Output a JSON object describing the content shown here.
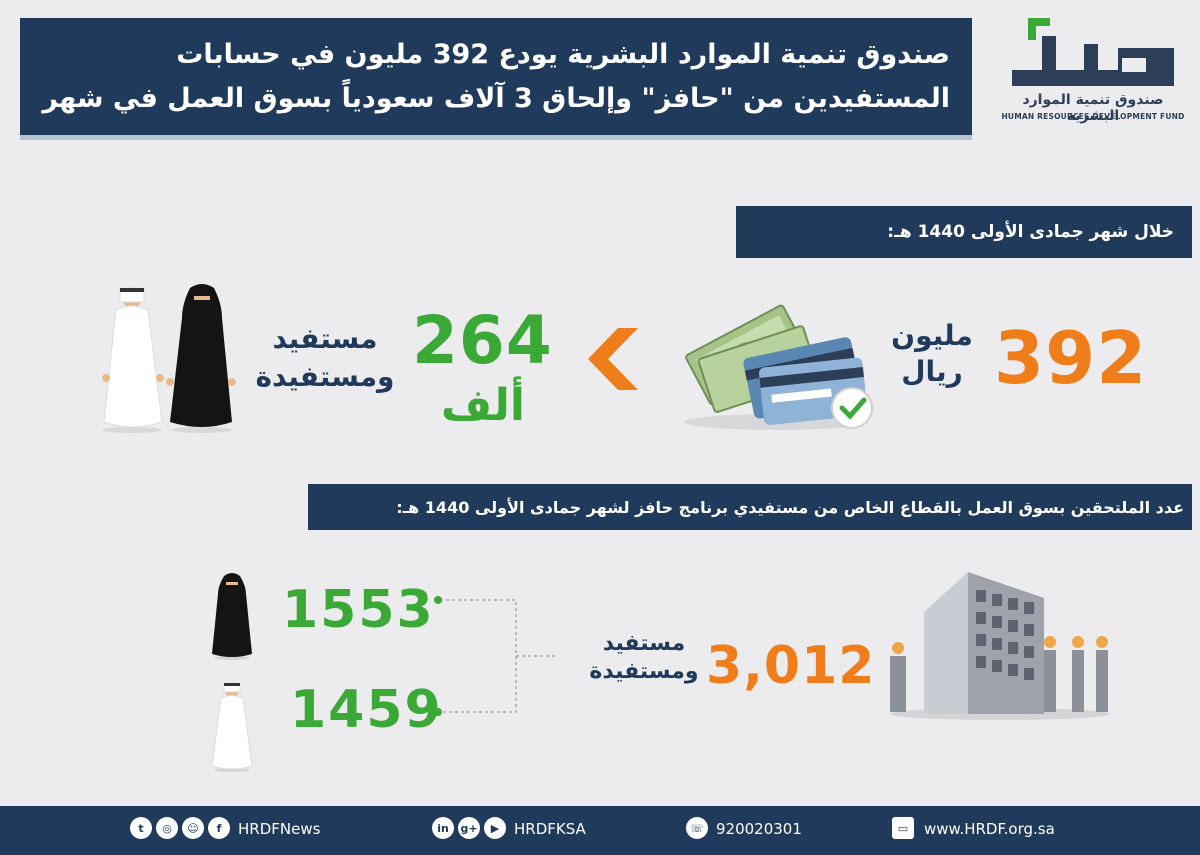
{
  "header": {
    "title_line1": "صندوق تنمية الموارد البشرية يودع 392 مليون في حسابات",
    "title_line2": "المستفيدين من \"حافز\" وإلحاق 3 آلاف سعودياً بسوق العمل في شهر",
    "logo_ar": "صندوق تنمية الموارد البشرية",
    "logo_en": "HUMAN RESOURCES DEVELOPMENT FUND"
  },
  "section1": {
    "label": "خلال شهر جمادى الأولى 1440 هـ:",
    "amount_value": "392",
    "amount_unit_line1": "مليون",
    "amount_unit_line2": "ريال",
    "beneficiaries_value": "264",
    "beneficiaries_unit": "ألف",
    "beneficiaries_label_line1": "مستفيد",
    "beneficiaries_label_line2": "ومستفيدة"
  },
  "section2": {
    "label": "عدد الملتحقين بسوق العمل بالقطاع الخاص من مستفيدي برنامج حافز لشهر جمادى الأولى 1440 هـ:",
    "total_value": "3,012",
    "total_label_line1": "مستفيد",
    "total_label_line2": "ومستفيدة",
    "female_value": "1553",
    "male_value": "1459"
  },
  "footer": {
    "social_handle": "HRDFNews",
    "social_handle2": "HRDFKSA",
    "phone": "920020301",
    "website": "www.HRDF.org.sa",
    "icons": [
      "twitter-icon",
      "instagram-icon",
      "snapchat-icon",
      "facebook-icon",
      "linkedin-icon",
      "googleplus-icon",
      "youtube-icon",
      "phone-icon",
      "monitor-icon"
    ]
  },
  "colors": {
    "navy": "#203a5c",
    "orange": "#ef7d1a",
    "green": "#3aa935",
    "background": "#ececee"
  }
}
